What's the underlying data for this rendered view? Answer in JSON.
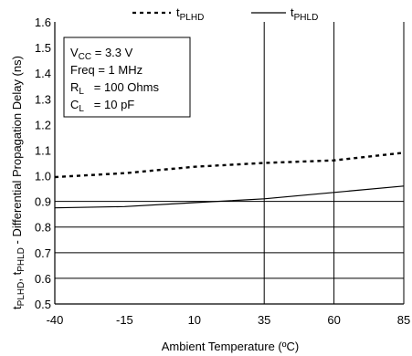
{
  "chart_data": {
    "type": "line",
    "xlabel": "Ambient Temperature (ºC)",
    "ylabel": {
      "part1_main": "t",
      "part1_sub": "PLHD",
      "sep": ", ",
      "part2_main": "t",
      "part2_sub": "PHLD",
      "rest": " - Differential Propagation Delay (ns)"
    },
    "xlim": [
      -40,
      85
    ],
    "ylim": [
      0.5,
      1.6
    ],
    "xticks": [
      "-40",
      "-15",
      "10",
      "35",
      "60",
      "85"
    ],
    "yticks": [
      "0.5",
      "0.6",
      "0.7",
      "0.8",
      "0.9",
      "1.0",
      "1.1",
      "1.2",
      "1.3",
      "1.4",
      "1.5",
      "1.6"
    ],
    "grid": "partial",
    "legend_position": "top",
    "series": [
      {
        "name_main": "t",
        "name_sub": "PLHD",
        "style": "dashed",
        "x": [
          -40,
          -15,
          10,
          35,
          60,
          85
        ],
        "y": [
          0.995,
          1.01,
          1.035,
          1.05,
          1.06,
          1.09
        ]
      },
      {
        "name_main": "t",
        "name_sub": "PHLD",
        "style": "solid",
        "x": [
          -40,
          -15,
          10,
          35,
          60,
          85
        ],
        "y": [
          0.875,
          0.88,
          0.895,
          0.91,
          0.935,
          0.96
        ]
      }
    ],
    "conditions": [
      {
        "label_main": "V",
        "label_sub": "CC",
        "value": " = 3.3 V"
      },
      {
        "label_main": "Freq",
        "label_sub": "",
        "value": " = 1 MHz"
      },
      {
        "label_main": "R",
        "label_sub": "L",
        "value": "   = 100 Ohms"
      },
      {
        "label_main": "C",
        "label_sub": "L",
        "value": "   = 10 pF"
      }
    ]
  }
}
